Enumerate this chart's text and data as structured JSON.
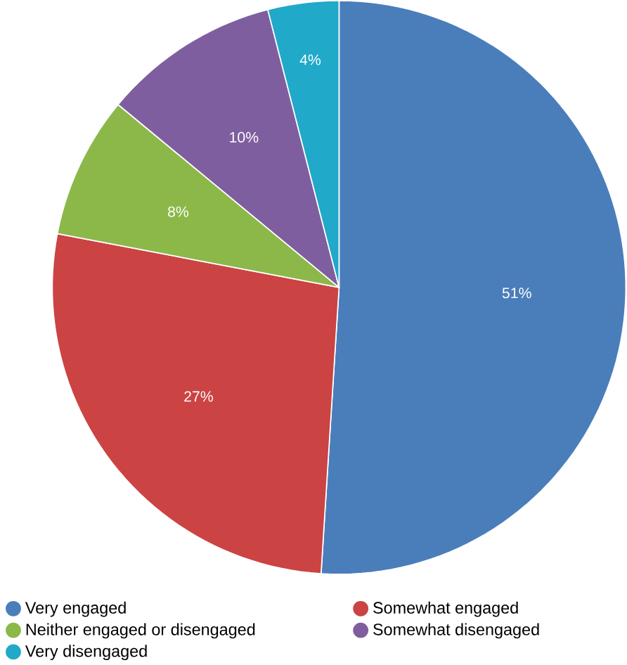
{
  "chart_data": {
    "type": "pie",
    "categories": [
      "Very engaged",
      "Somewhat engaged",
      "Neither engaged or disengaged",
      "Somewhat disengaged",
      "Very disengaged"
    ],
    "values": [
      51,
      27,
      8,
      10,
      4
    ],
    "value_labels": [
      "51%",
      "27%",
      "8%",
      "10%",
      "4%"
    ],
    "colors": [
      "#4a7ebb",
      "#cb4343",
      "#8cb84a",
      "#7f5ea0",
      "#20a9c9"
    ],
    "legend": "bottom"
  }
}
